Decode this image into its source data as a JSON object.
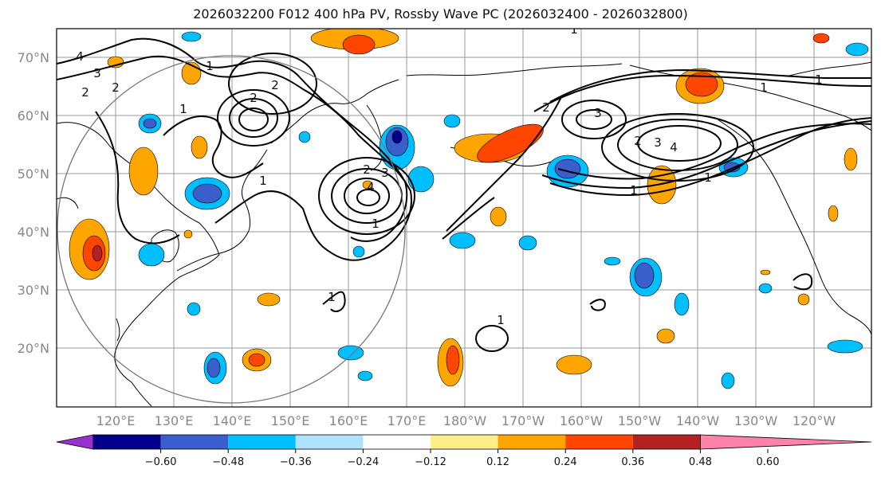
{
  "title": "2026032200 F012 400 hPa PV, Rossby Wave PC (2026032400 - 2026032800)",
  "lat_labels": [
    "70°N",
    "60°N",
    "50°N",
    "40°N",
    "30°N",
    "20°N"
  ],
  "lon_labels": [
    "120°E",
    "130°E",
    "140°E",
    "150°E",
    "160°E",
    "170°E",
    "180°W",
    "170°W",
    "160°W",
    "150°W",
    "140°W",
    "130°W",
    "120°W"
  ],
  "contour_labels": [
    "4",
    "3",
    "2",
    "2",
    "1",
    "2",
    "2",
    "1",
    "1",
    "2",
    "4",
    "3",
    "1",
    "3",
    "2",
    "3",
    "4",
    "1",
    "1",
    "1",
    "1",
    "2",
    "1",
    "1",
    "1"
  ],
  "colorbar": {
    "ticks": [
      "−0.60",
      "−0.48",
      "−0.36",
      "−0.24",
      "−0.12",
      "0.12",
      "0.24",
      "0.36",
      "0.48",
      "0.60"
    ],
    "colors": [
      "#9932cc",
      "#00008b",
      "#3a5fcd",
      "#00bfff",
      "#b0e2ff",
      "#ffffff",
      "#ffec8b",
      "#ffa500",
      "#ff4500",
      "#b22222",
      "#ff82ab"
    ]
  }
}
